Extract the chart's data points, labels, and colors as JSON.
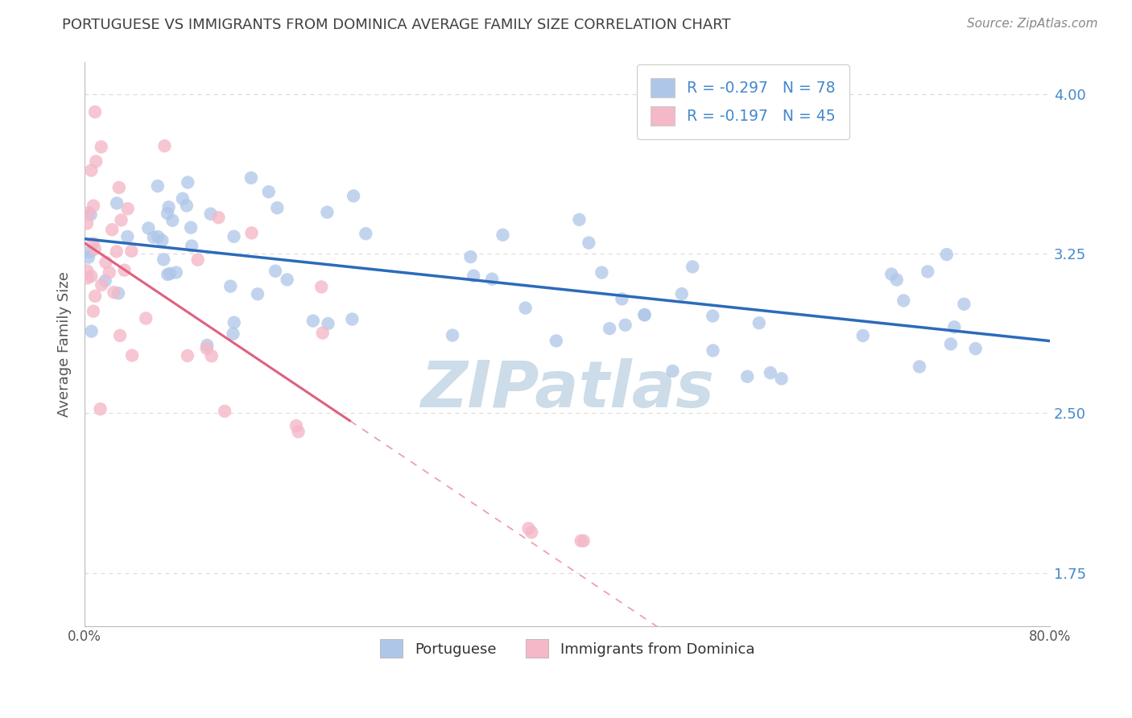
{
  "title": "PORTUGUESE VS IMMIGRANTS FROM DOMINICA AVERAGE FAMILY SIZE CORRELATION CHART",
  "source_text": "Source: ZipAtlas.com",
  "ylabel": "Average Family Size",
  "xlim": [
    0.0,
    0.8
  ],
  "ylim": [
    1.5,
    4.15
  ],
  "yticks": [
    1.75,
    2.5,
    3.25,
    4.0
  ],
  "bottom_legend": [
    {
      "label": "Portuguese",
      "color": "#aec6e8"
    },
    {
      "label": "Immigrants from Dominica",
      "color": "#f4b8c8"
    }
  ],
  "blue_line_color": "#2b6bba",
  "pink_line_color": "#e06080",
  "blue_dot_color": "#aec6e8",
  "pink_dot_color": "#f4b8c8",
  "watermark": "ZIPatlas",
  "watermark_color": "#ccdce8",
  "background_color": "#ffffff",
  "grid_color": "#dddddd",
  "title_color": "#404040",
  "right_tick_color": "#4488cc",
  "blue_intercept": 3.32,
  "blue_slope": -0.6,
  "pink_intercept": 3.3,
  "pink_slope": -3.8
}
